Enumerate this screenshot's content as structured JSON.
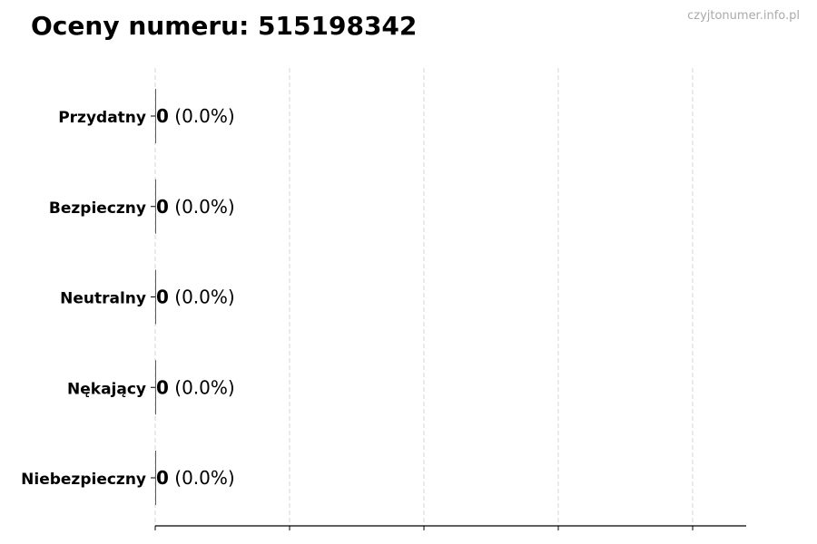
{
  "title": "Oceny numeru: 515198342",
  "watermark": "czyjtonumer.info.pl",
  "chart_data": {
    "type": "bar",
    "orientation": "horizontal",
    "title": "Oceny numeru: 515198342",
    "categories": [
      "Przydatny",
      "Bezpieczny",
      "Neutralny",
      "Nękający",
      "Niebezpieczny"
    ],
    "values": [
      0,
      0,
      0,
      0,
      0
    ],
    "data_labels": [
      "0 (0.0%)",
      "0 (0.0%)",
      "0 (0.0%)",
      "0 (0.0%)",
      "0 (0.0%)"
    ],
    "percentages": [
      "0.0%",
      "0.0%",
      "0.0%",
      "0.0%",
      "0.0%"
    ],
    "xlim": [
      0,
      4.4
    ],
    "x_ticks": [
      0,
      1,
      2,
      3,
      4
    ],
    "x_tick_labels_shown": false,
    "grid": "vertical dashed",
    "colors": {
      "bar_edge": "#333333",
      "grid": "#cccccc",
      "watermark": "#aaaaaa"
    }
  }
}
